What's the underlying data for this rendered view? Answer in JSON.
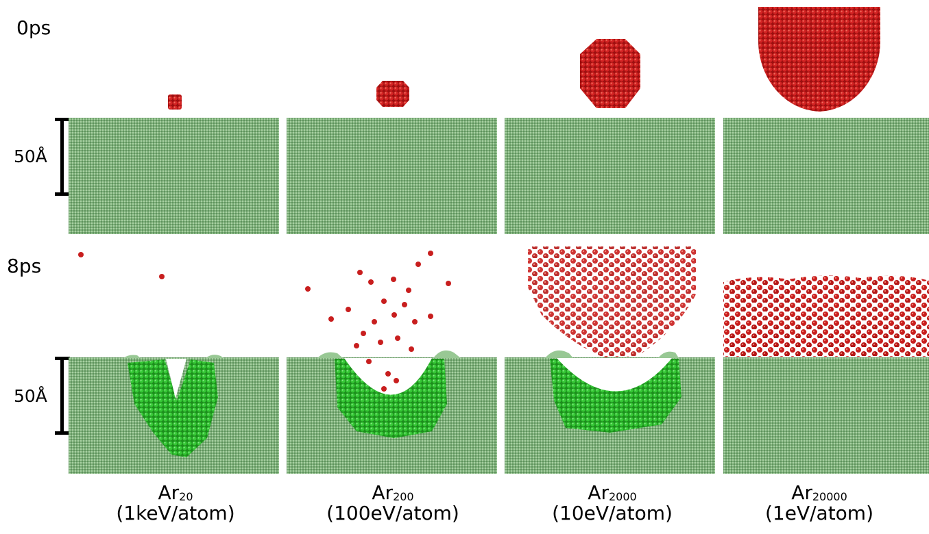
{
  "rows": {
    "top": {
      "time": "0ps",
      "scale": "50Å"
    },
    "bottom": {
      "time": "8ps",
      "scale": "50Å"
    }
  },
  "columns": [
    {
      "element": "Ar",
      "subscript": "20",
      "energy": "(1keV/atom)"
    },
    {
      "element": "Ar",
      "subscript": "200",
      "energy": "(100eV/atom)"
    },
    {
      "element": "Ar",
      "subscript": "2000",
      "energy": "(10eV/atom)"
    },
    {
      "element": "Ar",
      "subscript": "20000",
      "energy": "(1eV/atom)"
    }
  ],
  "colors": {
    "substrate": "#7fb27f",
    "displaced_substrate": "#2fbf2f",
    "argon": "#c81e1e"
  }
}
